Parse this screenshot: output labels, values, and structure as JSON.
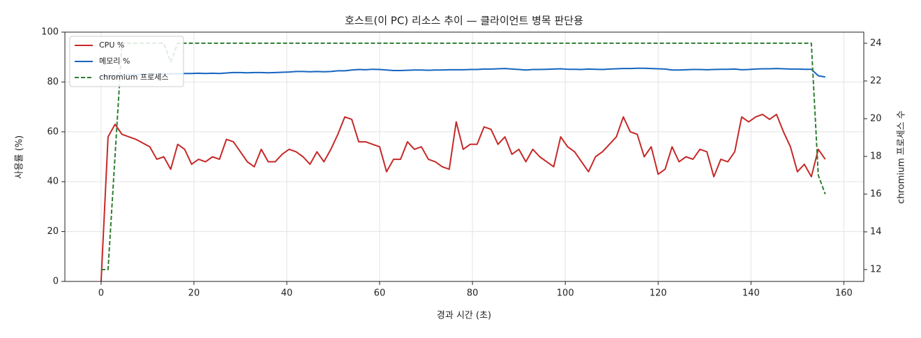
{
  "chart_data": {
    "type": "line",
    "title": "호스트(이 PC) 리소스 추이 — 클라이언트 병목 판단용",
    "xlabel": "경과 시간 (초)",
    "ylabel": "사용률 (%)",
    "y2label": "chromium 프로세스 수",
    "x": [
      0,
      1.5,
      3,
      4.5,
      6,
      7.5,
      9,
      10.5,
      12,
      13.5,
      15,
      16.5,
      18,
      19.5,
      21,
      22.5,
      24,
      25.5,
      27,
      28.5,
      30,
      31.5,
      33,
      34.5,
      36,
      37.5,
      39,
      40.5,
      42,
      43.5,
      45,
      46.5,
      48,
      49.5,
      51,
      52.5,
      54,
      55.5,
      57,
      58.5,
      60,
      61.5,
      63,
      64.5,
      66,
      67.5,
      69,
      70.5,
      72,
      73.5,
      75,
      76.5,
      78,
      79.5,
      81,
      82.5,
      84,
      85.5,
      87,
      88.5,
      90,
      91.5,
      93,
      94.5,
      96,
      97.5,
      99,
      100.5,
      102,
      103.5,
      105,
      106.5,
      108,
      109.5,
      111,
      112.5,
      114,
      115.5,
      117,
      118.5,
      120,
      121.5,
      123,
      124.5,
      126,
      127.5,
      129,
      130.5,
      132,
      133.5,
      135,
      136.5,
      138,
      139.5,
      141,
      142.5,
      144,
      145.5,
      147,
      148.5,
      150,
      151.5,
      153,
      154.5,
      156
    ],
    "series": [
      {
        "name": "CPU %",
        "color": "#c62828",
        "linestyle": "solid",
        "axis": "y",
        "values": [
          0,
          58,
          63,
          59,
          58,
          57,
          55.5,
          54,
          49,
          50,
          45,
          55,
          53,
          47,
          49,
          48,
          50,
          49,
          57,
          56,
          52,
          48,
          46,
          53,
          48,
          48,
          51,
          53,
          52,
          50,
          47,
          52,
          48,
          53,
          59,
          66,
          65,
          56,
          56,
          55,
          54,
          44,
          49,
          49,
          56,
          53,
          54,
          49,
          48,
          46,
          45,
          64,
          53,
          55,
          55,
          62,
          61,
          55,
          58,
          51,
          53,
          48,
          53,
          50,
          48,
          46,
          58,
          54,
          52,
          48,
          44,
          50,
          52,
          55,
          58,
          66,
          60,
          59,
          50,
          54,
          43,
          45,
          54,
          48,
          50,
          49,
          53,
          52,
          42,
          49,
          48,
          52,
          66,
          64,
          66,
          67,
          65,
          67,
          60,
          54,
          44,
          47,
          42,
          53,
          49
        ]
      },
      {
        "name": "메모리 %",
        "color": "#1565c0",
        "linestyle": "solid",
        "axis": "y",
        "values": [
          82.5,
          82.6,
          82.7,
          82.8,
          82.9,
          83,
          83,
          83.1,
          83.2,
          83.2,
          83.3,
          83.3,
          83.4,
          83.4,
          83.5,
          83.4,
          83.5,
          83.4,
          83.6,
          83.8,
          83.8,
          83.7,
          83.8,
          83.8,
          83.7,
          83.8,
          83.9,
          84,
          84.2,
          84.2,
          84.1,
          84.2,
          84.1,
          84.2,
          84.5,
          84.5,
          84.8,
          85,
          84.9,
          85.1,
          85,
          84.8,
          84.6,
          84.6,
          84.7,
          84.8,
          84.8,
          84.7,
          84.8,
          84.8,
          84.9,
          84.9,
          84.9,
          85,
          85,
          85.2,
          85.2,
          85.3,
          85.4,
          85.2,
          85,
          84.8,
          85,
          85,
          85.1,
          85.2,
          85.3,
          85.1,
          85.1,
          85,
          85.2,
          85.1,
          85,
          85.2,
          85.3,
          85.4,
          85.4,
          85.5,
          85.5,
          85.4,
          85.3,
          85.2,
          84.8,
          84.8,
          84.9,
          85,
          85,
          84.9,
          85,
          85.1,
          85.1,
          85.2,
          84.9,
          85,
          85.2,
          85.3,
          85.3,
          85.4,
          85.3,
          85.2,
          85.2,
          85.1,
          85.1,
          82.5,
          82
        ]
      },
      {
        "name": "chromium 프로세스",
        "color": "#2e7d32",
        "linestyle": "dashed",
        "axis": "y2",
        "values": [
          12,
          12,
          18,
          24,
          24,
          24,
          24,
          24,
          24,
          24,
          23,
          24,
          24,
          24,
          24,
          24,
          24,
          24,
          24,
          24,
          24,
          24,
          24,
          24,
          24,
          24,
          24,
          24,
          24,
          24,
          24,
          24,
          24,
          24,
          24,
          24,
          24,
          24,
          24,
          24,
          24,
          24,
          24,
          24,
          24,
          24,
          24,
          24,
          24,
          24,
          24,
          24,
          24,
          24,
          24,
          24,
          24,
          24,
          24,
          24,
          24,
          24,
          24,
          24,
          24,
          24,
          24,
          24,
          24,
          24,
          24,
          24,
          24,
          24,
          24,
          24,
          24,
          24,
          24,
          24,
          24,
          24,
          24,
          24,
          24,
          24,
          24,
          24,
          24,
          24,
          24,
          24,
          24,
          24,
          24,
          24,
          24,
          24,
          24,
          24,
          24,
          24,
          24,
          17,
          16
        ]
      }
    ],
    "xlim": [
      -7.8,
      164.3
    ],
    "xticks": [
      0,
      20,
      40,
      60,
      80,
      100,
      120,
      140,
      160
    ],
    "ylim": [
      0,
      100
    ],
    "yticks": [
      0,
      20,
      40,
      60,
      80,
      100
    ],
    "y2lim": [
      11.37,
      24.59
    ],
    "y2ticks": [
      12,
      14,
      16,
      18,
      20,
      22,
      24
    ],
    "grid": true,
    "legend": "upper left"
  }
}
